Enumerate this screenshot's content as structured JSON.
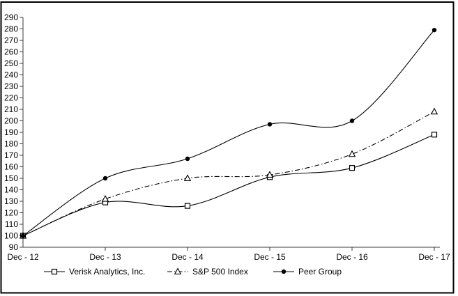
{
  "chart_data": {
    "type": "line",
    "title": "",
    "xlabel": "",
    "ylabel": "",
    "categories": [
      "Dec - 12",
      "Dec - 13",
      "Dec - 14",
      "Dec - 15",
      "Dec - 16",
      "Dec - 17"
    ],
    "ylim": [
      90,
      290
    ],
    "ytick_step": 10,
    "grid": false,
    "legend_position": "bottom",
    "series": [
      {
        "name": "Verisk Analytics, Inc.",
        "marker": "square-open",
        "line": "solid",
        "values": [
          100,
          129,
          126,
          151,
          159,
          188
        ]
      },
      {
        "name": "S&P 500 Index",
        "marker": "triangle-open",
        "line": "dashdot",
        "values": [
          100,
          132,
          150,
          153,
          171,
          208
        ]
      },
      {
        "name": "Peer Group",
        "marker": "circle-filled",
        "line": "solid",
        "values": [
          100,
          150,
          167,
          197,
          200,
          279
        ]
      }
    ],
    "colors": {
      "line": "#000000",
      "axis": "#3a3a3a",
      "text": "#000000",
      "frame": "#000000",
      "background": "#ffffff"
    }
  }
}
